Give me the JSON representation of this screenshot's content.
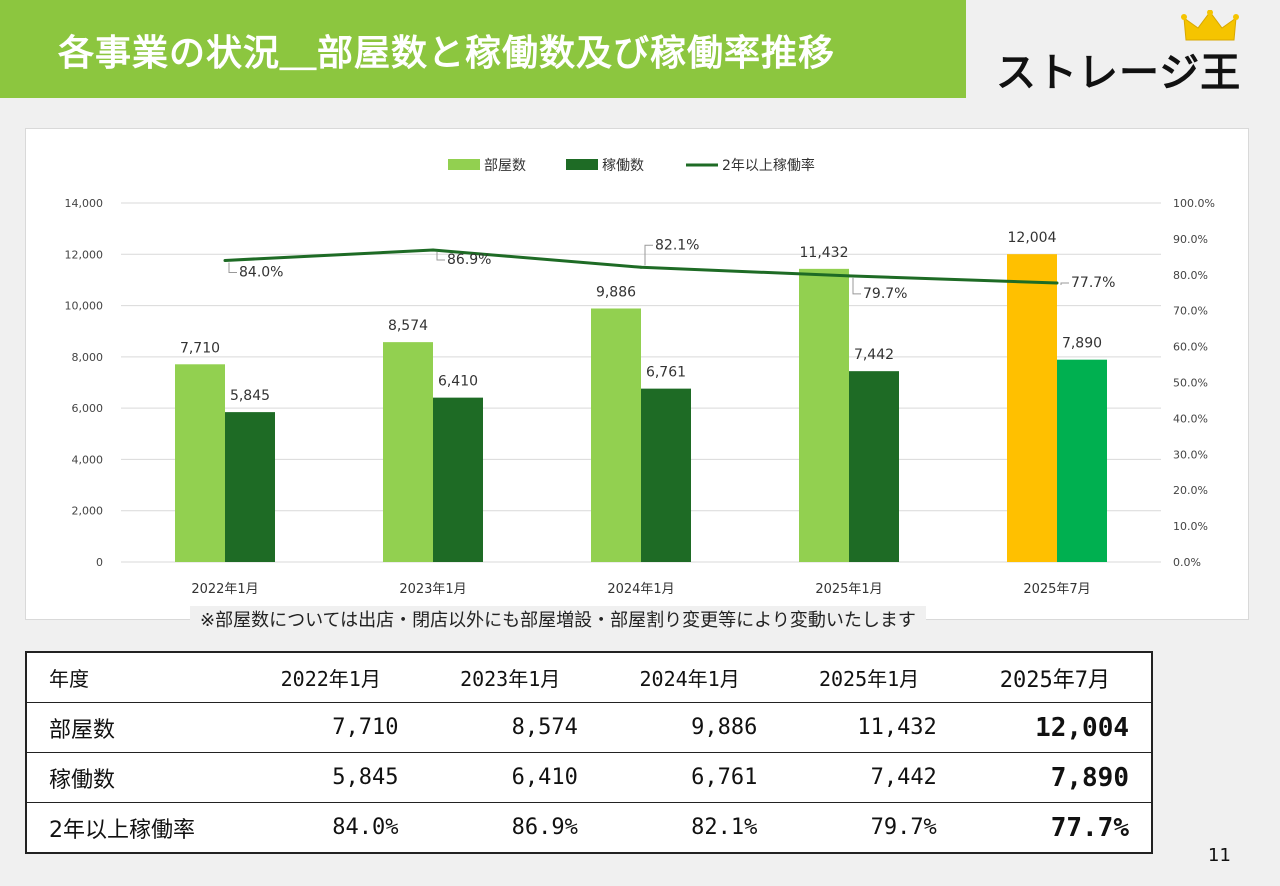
{
  "header": {
    "title": "各事業の状況＿部屋数と稼働数及び稼働率推移"
  },
  "logo": {
    "text": "ストレージ王"
  },
  "chart_data": {
    "type": "bar",
    "categories": [
      "2022年1月",
      "2023年1月",
      "2024年1月",
      "2025年1月",
      "2025年7月"
    ],
    "series": [
      {
        "name": "部屋数",
        "type": "bar",
        "axis": "left",
        "values": [
          7710,
          8574,
          9886,
          11432,
          12004
        ],
        "labels": [
          "7,710",
          "8,574",
          "9,886",
          "11,432",
          "12,004"
        ],
        "color": "#92d050",
        "highlight_color": "#ffc000"
      },
      {
        "name": "稼働数",
        "type": "bar",
        "axis": "left",
        "values": [
          5845,
          6410,
          6761,
          7442,
          7890
        ],
        "labels": [
          "5,845",
          "6,410",
          "6,761",
          "7,442",
          "7,890"
        ],
        "color": "#1e6b25",
        "highlight_color": "#00b050"
      },
      {
        "name": "2年以上稼働率",
        "type": "line",
        "axis": "right",
        "values": [
          84.0,
          86.9,
          82.1,
          79.7,
          77.7
        ],
        "labels": [
          "84.0%",
          "86.9%",
          "82.1%",
          "79.7%",
          "77.7%"
        ],
        "color": "#1e6b25"
      }
    ],
    "y_left": {
      "min": 0,
      "max": 14000,
      "ticks": [
        0,
        2000,
        4000,
        6000,
        8000,
        10000,
        12000,
        14000
      ],
      "tick_labels": [
        "0",
        "2,000",
        "4,000",
        "6,000",
        "8,000",
        "10,000",
        "12,000",
        "14,000"
      ]
    },
    "y_right": {
      "min": 0,
      "max": 100,
      "ticks": [
        0,
        10,
        20,
        30,
        40,
        50,
        60,
        70,
        80,
        90,
        100
      ],
      "tick_labels": [
        "0.0%",
        "10.0%",
        "20.0%",
        "30.0%",
        "40.0%",
        "50.0%",
        "60.0%",
        "70.0%",
        "80.0%",
        "90.0%",
        "100.0%"
      ]
    },
    "grid": true,
    "legend": "top-center"
  },
  "note": "※部屋数については出店・閉店以外にも部屋増設・部屋割り変更等により変動いたします",
  "table": {
    "header": [
      "年度",
      "2022年1月",
      "2023年1月",
      "2024年1月",
      "2025年1月",
      "2025年7月"
    ],
    "rows": [
      [
        "部屋数",
        "7,710",
        "8,574",
        "9,886",
        "11,432",
        "12,004"
      ],
      [
        "稼働数",
        "5,845",
        "6,410",
        "6,761",
        "7,442",
        "7,890"
      ],
      [
        "2年以上稼働率",
        "84.0%",
        "86.9%",
        "82.1%",
        "79.7%",
        "77.7%"
      ]
    ]
  },
  "page_number": "11"
}
